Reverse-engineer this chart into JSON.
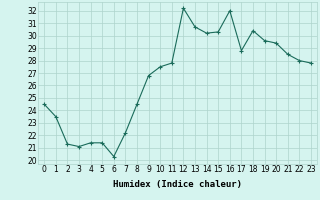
{
  "x": [
    0,
    1,
    2,
    3,
    4,
    5,
    6,
    7,
    8,
    9,
    10,
    11,
    12,
    13,
    14,
    15,
    16,
    17,
    18,
    19,
    20,
    21,
    22,
    23
  ],
  "y": [
    24.5,
    23.5,
    21.3,
    21.1,
    21.4,
    21.4,
    20.3,
    22.2,
    24.5,
    26.8,
    27.5,
    27.8,
    32.2,
    30.7,
    30.2,
    30.3,
    32.0,
    28.8,
    30.4,
    29.6,
    29.4,
    28.5,
    28.0,
    27.8
  ],
  "line_color": "#1a6b5a",
  "marker": "+",
  "marker_size": 3,
  "marker_lw": 0.8,
  "bg_color": "#d5f4ef",
  "grid_color": "#aed4cc",
  "xlabel": "Humidex (Indice chaleur)",
  "ylabel_ticks": [
    20,
    21,
    22,
    23,
    24,
    25,
    26,
    27,
    28,
    29,
    30,
    31,
    32
  ],
  "ylim": [
    19.7,
    32.7
  ],
  "xlim": [
    -0.5,
    23.5
  ],
  "xlabel_fontsize": 6.5,
  "tick_fontsize": 5.5,
  "linewidth": 0.8
}
